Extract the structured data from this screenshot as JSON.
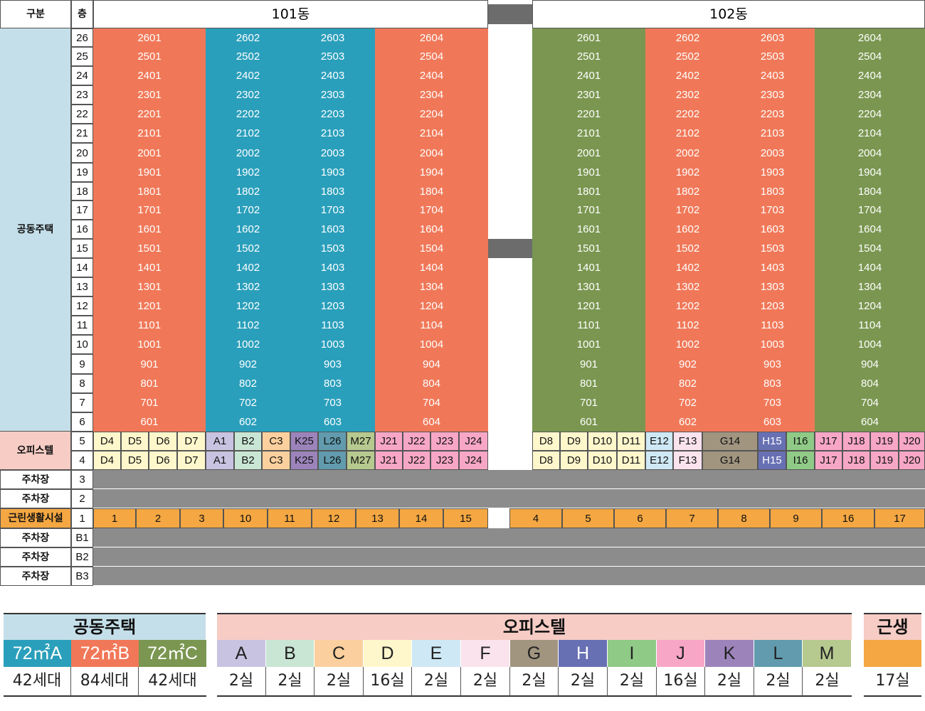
{
  "header": {
    "col_category": "구분",
    "col_floor": "층"
  },
  "buildings": [
    {
      "name": "101동"
    },
    {
      "name": "102동"
    }
  ],
  "colors": {
    "red": "#f07858",
    "teal": "#2a9fbb",
    "green": "#7a9650",
    "gray": "#8c8c8c",
    "darkgray": "#6c6c6c",
    "lightblue": "#c4dfe9",
    "pink_label": "#f6ccc4",
    "orange": "#f4a742",
    "A": "#c9c3e2",
    "B": "#c9e6d4",
    "C": "#fbd09e",
    "D": "#fff7cc",
    "E": "#cfe8f5",
    "F": "#fbe3ee",
    "G": "#a19580",
    "H": "#6870b4",
    "I": "#8fca86",
    "J": "#f7a7c5",
    "K": "#9c84bb",
    "L": "#619bad",
    "M": "#b6c98f"
  },
  "categories": {
    "apartment": "공동주택",
    "officetel": "오피스텔",
    "parking": "주차장",
    "retail": "근린생활시설"
  },
  "floors": [
    "26",
    "25",
    "24",
    "23",
    "22",
    "21",
    "20",
    "19",
    "18",
    "17",
    "16",
    "15",
    "14",
    "13",
    "12",
    "11",
    "10",
    "9",
    "8",
    "7",
    "6"
  ],
  "units101": [
    "01",
    "02",
    "03",
    "04"
  ],
  "units102": [
    "01",
    "02",
    "03",
    "04"
  ],
  "officetel_floors": [
    "5",
    "4"
  ],
  "officetel101": [
    "D4",
    "D5",
    "D6",
    "D7",
    "A1",
    "B2",
    "C3",
    "K25",
    "L26",
    "M27",
    "J21",
    "J22",
    "J23",
    "J24"
  ],
  "officetel102": [
    "D8",
    "D9",
    "D10",
    "D11",
    "E12",
    "F13",
    "G14",
    "H15",
    "I16",
    "J17",
    "J18",
    "J19",
    "J20"
  ],
  "parking_upper_floors": [
    "3",
    "2"
  ],
  "retail_floor": "1",
  "retail101": [
    "1",
    "2",
    "3",
    "10",
    "11",
    "12",
    "13",
    "14",
    "15"
  ],
  "retail102": [
    "4",
    "5",
    "6",
    "7",
    "8",
    "9",
    "16",
    "17"
  ],
  "parking_lower_floors": [
    "B1",
    "B2",
    "B3"
  ],
  "legend": {
    "apartment_title": "공동주택",
    "apartment_types": [
      {
        "code": "72㎡A",
        "count": "42세대"
      },
      {
        "code": "72㎡B",
        "count": "84세대"
      },
      {
        "code": "72㎡C",
        "count": "42세대"
      }
    ],
    "officetel_title": "오피스텔",
    "officetel_types": [
      {
        "code": "A",
        "count": "2실"
      },
      {
        "code": "B",
        "count": "2실"
      },
      {
        "code": "C",
        "count": "2실"
      },
      {
        "code": "D",
        "count": "16실"
      },
      {
        "code": "E",
        "count": "2실"
      },
      {
        "code": "F",
        "count": "2실"
      },
      {
        "code": "G",
        "count": "2실"
      },
      {
        "code": "H",
        "count": "2실"
      },
      {
        "code": "I",
        "count": "2실"
      },
      {
        "code": "J",
        "count": "16실"
      },
      {
        "code": "K",
        "count": "2실"
      },
      {
        "code": "L",
        "count": "2실"
      },
      {
        "code": "M",
        "count": "2실"
      }
    ],
    "retail_title": "근생",
    "retail_count": "17실"
  }
}
